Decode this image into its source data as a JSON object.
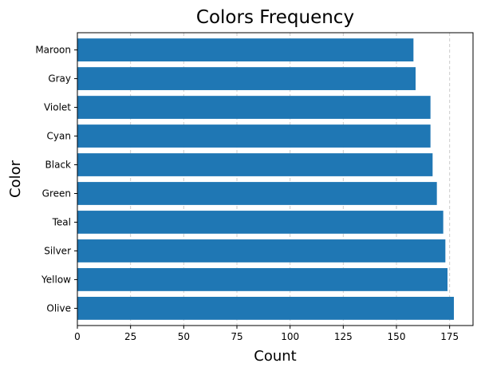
{
  "chart_data": {
    "type": "bar",
    "orientation": "horizontal",
    "title": "Colors Frequency",
    "xlabel": "Count",
    "ylabel": "Color",
    "categories": [
      "Olive",
      "Yellow",
      "Silver",
      "Teal",
      "Green",
      "Black",
      "Cyan",
      "Violet",
      "Gray",
      "Maroon"
    ],
    "values": [
      177,
      174,
      173,
      172,
      169,
      167,
      166,
      166,
      159,
      158
    ],
    "xlim": [
      0,
      186
    ],
    "xticks": [
      0,
      25,
      50,
      75,
      100,
      125,
      150,
      175
    ],
    "grid": "vertical dashed",
    "bar_color": "#1f77b4",
    "grid_color": "#cccccc"
  }
}
